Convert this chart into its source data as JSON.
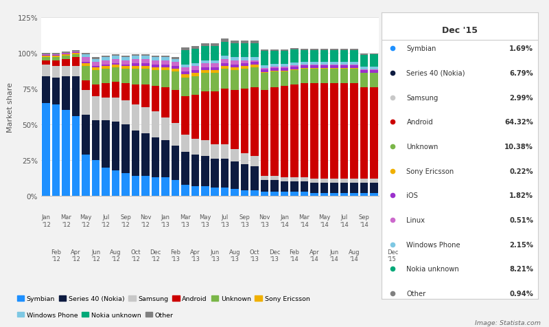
{
  "ylabel": "Market share",
  "bg_color": "#f2f2f2",
  "plot_bg": "#ffffff",
  "odd_tick_labels": [
    "Jan\n'12",
    "Mar\n'12",
    "May\n'12",
    "Jul\n'12",
    "Sep\n'12",
    "Nov\n'12",
    "Jan\n'13",
    "Mar\n'13",
    "May\n'13",
    "Jul\n'13",
    "Sep\n'13",
    "Nov\n'13",
    "Jan\n'14",
    "Mar\n'14",
    "May\n'14",
    "Jul\n'14",
    "Sep\n'14"
  ],
  "even_tick_labels": [
    "Feb\n'12",
    "Apr\n'12",
    "Jun\n'12",
    "Aug\n'12",
    "Oct\n'12",
    "Dec\n'12",
    "Feb\n'13",
    "Apr\n'13",
    "Jun\n'13",
    "Aug\n'13",
    "Oct\n'13",
    "Dec\n'13",
    "Feb\n'14",
    "Apr\n'14",
    "Jun\n'14",
    "Aug\n'14"
  ],
  "last_tick_label": "Dec\n'15",
  "series_names": [
    "Symbian",
    "Series 40 (Nokia)",
    "Samsung",
    "Android",
    "Unknown",
    "Sony Ericsson",
    "iOS",
    "Linux",
    "Windows Phone",
    "Nokia unknown",
    "Other"
  ],
  "series_colors": [
    "#1e90ff",
    "#0d1b40",
    "#c8c8c8",
    "#cc0000",
    "#7ab648",
    "#f0b000",
    "#9b30cc",
    "#cc69cc",
    "#7ec8e3",
    "#00a878",
    "#808080"
  ],
  "series_values": [
    [
      65,
      64,
      60,
      56,
      29,
      25,
      20,
      18,
      16,
      14,
      14,
      13,
      13,
      11,
      8,
      7,
      7,
      6,
      6,
      5,
      4,
      4,
      3,
      3,
      3,
      3,
      3,
      2,
      2,
      2,
      2,
      2,
      2,
      2
    ],
    [
      19,
      19,
      24,
      28,
      28,
      28,
      33,
      34,
      34,
      32,
      30,
      28,
      26,
      24,
      23,
      22,
      21,
      20,
      20,
      19,
      18,
      17,
      8,
      8,
      7,
      7,
      7,
      7,
      7,
      7,
      7,
      7,
      7,
      7
    ],
    [
      8,
      8,
      7,
      7,
      17,
      17,
      16,
      17,
      17,
      18,
      18,
      18,
      16,
      16,
      12,
      11,
      11,
      10,
      10,
      9,
      8,
      7,
      3,
      3,
      3,
      3,
      3,
      3,
      3,
      3,
      3,
      3,
      3,
      3
    ],
    [
      3,
      4,
      5,
      6,
      7,
      8,
      10,
      11,
      12,
      14,
      16,
      18,
      21,
      23,
      27,
      31,
      34,
      37,
      39,
      41,
      45,
      48,
      60,
      62,
      64,
      65,
      66,
      67,
      67,
      67,
      67,
      67,
      64,
      64
    ],
    [
      2,
      2,
      2,
      2,
      10,
      10,
      10,
      10,
      10,
      11,
      11,
      11,
      12,
      13,
      13,
      13,
      13,
      13,
      14,
      14,
      14,
      14,
      12,
      11,
      10,
      10,
      10,
      10,
      10,
      10,
      10,
      10,
      10,
      10
    ],
    [
      1,
      1,
      1,
      1,
      2,
      2,
      2,
      2,
      2,
      2,
      2,
      2,
      2,
      2,
      2,
      2,
      2,
      2,
      2,
      2,
      2,
      2,
      0.5,
      0.5,
      0.5,
      0.5,
      0.5,
      0.5,
      0.5,
      0.5,
      0.5,
      0.5,
      0.22,
      0.22
    ],
    [
      0.5,
      0.5,
      0.5,
      0.5,
      1,
      1,
      1,
      1,
      1,
      2,
      2,
      2,
      2,
      2,
      2,
      2,
      2,
      2,
      2,
      2,
      2,
      2,
      2,
      2,
      2,
      2,
      2,
      2,
      2,
      2,
      2,
      2,
      2,
      1.82
    ],
    [
      0.5,
      0.5,
      0.5,
      0.5,
      3,
      3,
      3,
      3,
      3,
      3,
      3,
      3,
      3,
      3,
      3,
      3,
      3,
      3,
      3,
      3,
      2,
      1,
      1,
      1,
      1,
      1,
      0.5,
      0.5,
      0.5,
      0.5,
      0.5,
      0.5,
      0.5,
      0.51
    ],
    [
      0,
      0,
      0,
      0,
      2,
      2,
      2,
      2,
      2,
      2,
      2,
      2,
      2,
      2,
      2,
      2,
      2,
      2,
      2,
      2,
      2,
      2,
      2,
      2,
      2,
      2,
      2,
      2,
      2,
      2,
      2,
      2,
      2,
      2.15
    ],
    [
      0,
      0,
      0,
      0,
      0,
      0,
      0,
      0,
      0,
      0,
      0,
      0,
      0,
      0,
      10,
      10,
      10,
      10,
      10,
      10,
      10,
      10,
      10,
      9,
      9,
      9,
      8,
      8,
      8,
      8,
      8,
      8,
      8,
      8.21
    ],
    [
      1,
      1,
      1,
      1,
      1,
      1,
      1,
      1,
      1,
      1,
      1,
      1,
      1,
      1,
      2,
      2,
      2,
      2,
      2,
      2,
      2,
      2,
      1,
      1,
      1,
      1,
      1,
      1,
      1,
      1,
      1,
      1,
      1,
      0.94
    ]
  ],
  "tooltip_title": "Dec '15",
  "tooltip_items": [
    {
      "label": "Symbian",
      "color": "#1e90ff",
      "value": "1.69%"
    },
    {
      "label": "Series 40 (Nokia)",
      "color": "#0d1b40",
      "value": "6.79%"
    },
    {
      "label": "Samsung",
      "color": "#c8c8c8",
      "value": "2.99%"
    },
    {
      "label": "Android",
      "color": "#cc0000",
      "value": "64.32%"
    },
    {
      "label": "Unknown",
      "color": "#7ab648",
      "value": "10.38%"
    },
    {
      "label": "Sony Ericsson",
      "color": "#f0b000",
      "value": "0.22%"
    },
    {
      "label": "iOS",
      "color": "#9b30cc",
      "value": "1.82%"
    },
    {
      "label": "Linux",
      "color": "#cc69cc",
      "value": "0.51%"
    },
    {
      "label": "Windows Phone",
      "color": "#7ec8e3",
      "value": "2.15%"
    },
    {
      "label": "Nokia unknown",
      "color": "#00a878",
      "value": "8.21%"
    },
    {
      "label": "Other",
      "color": "#808080",
      "value": "0.94%"
    }
  ],
  "legend_row1": [
    "Symbian",
    "Series 40 (Nokia)",
    "Samsung",
    "Android",
    "Unknown",
    "Sony Ericsson"
  ],
  "legend_row2": [
    "Windows Phone",
    "Nokia unknown",
    "Other"
  ],
  "image_credit": "Image: Statista.com"
}
